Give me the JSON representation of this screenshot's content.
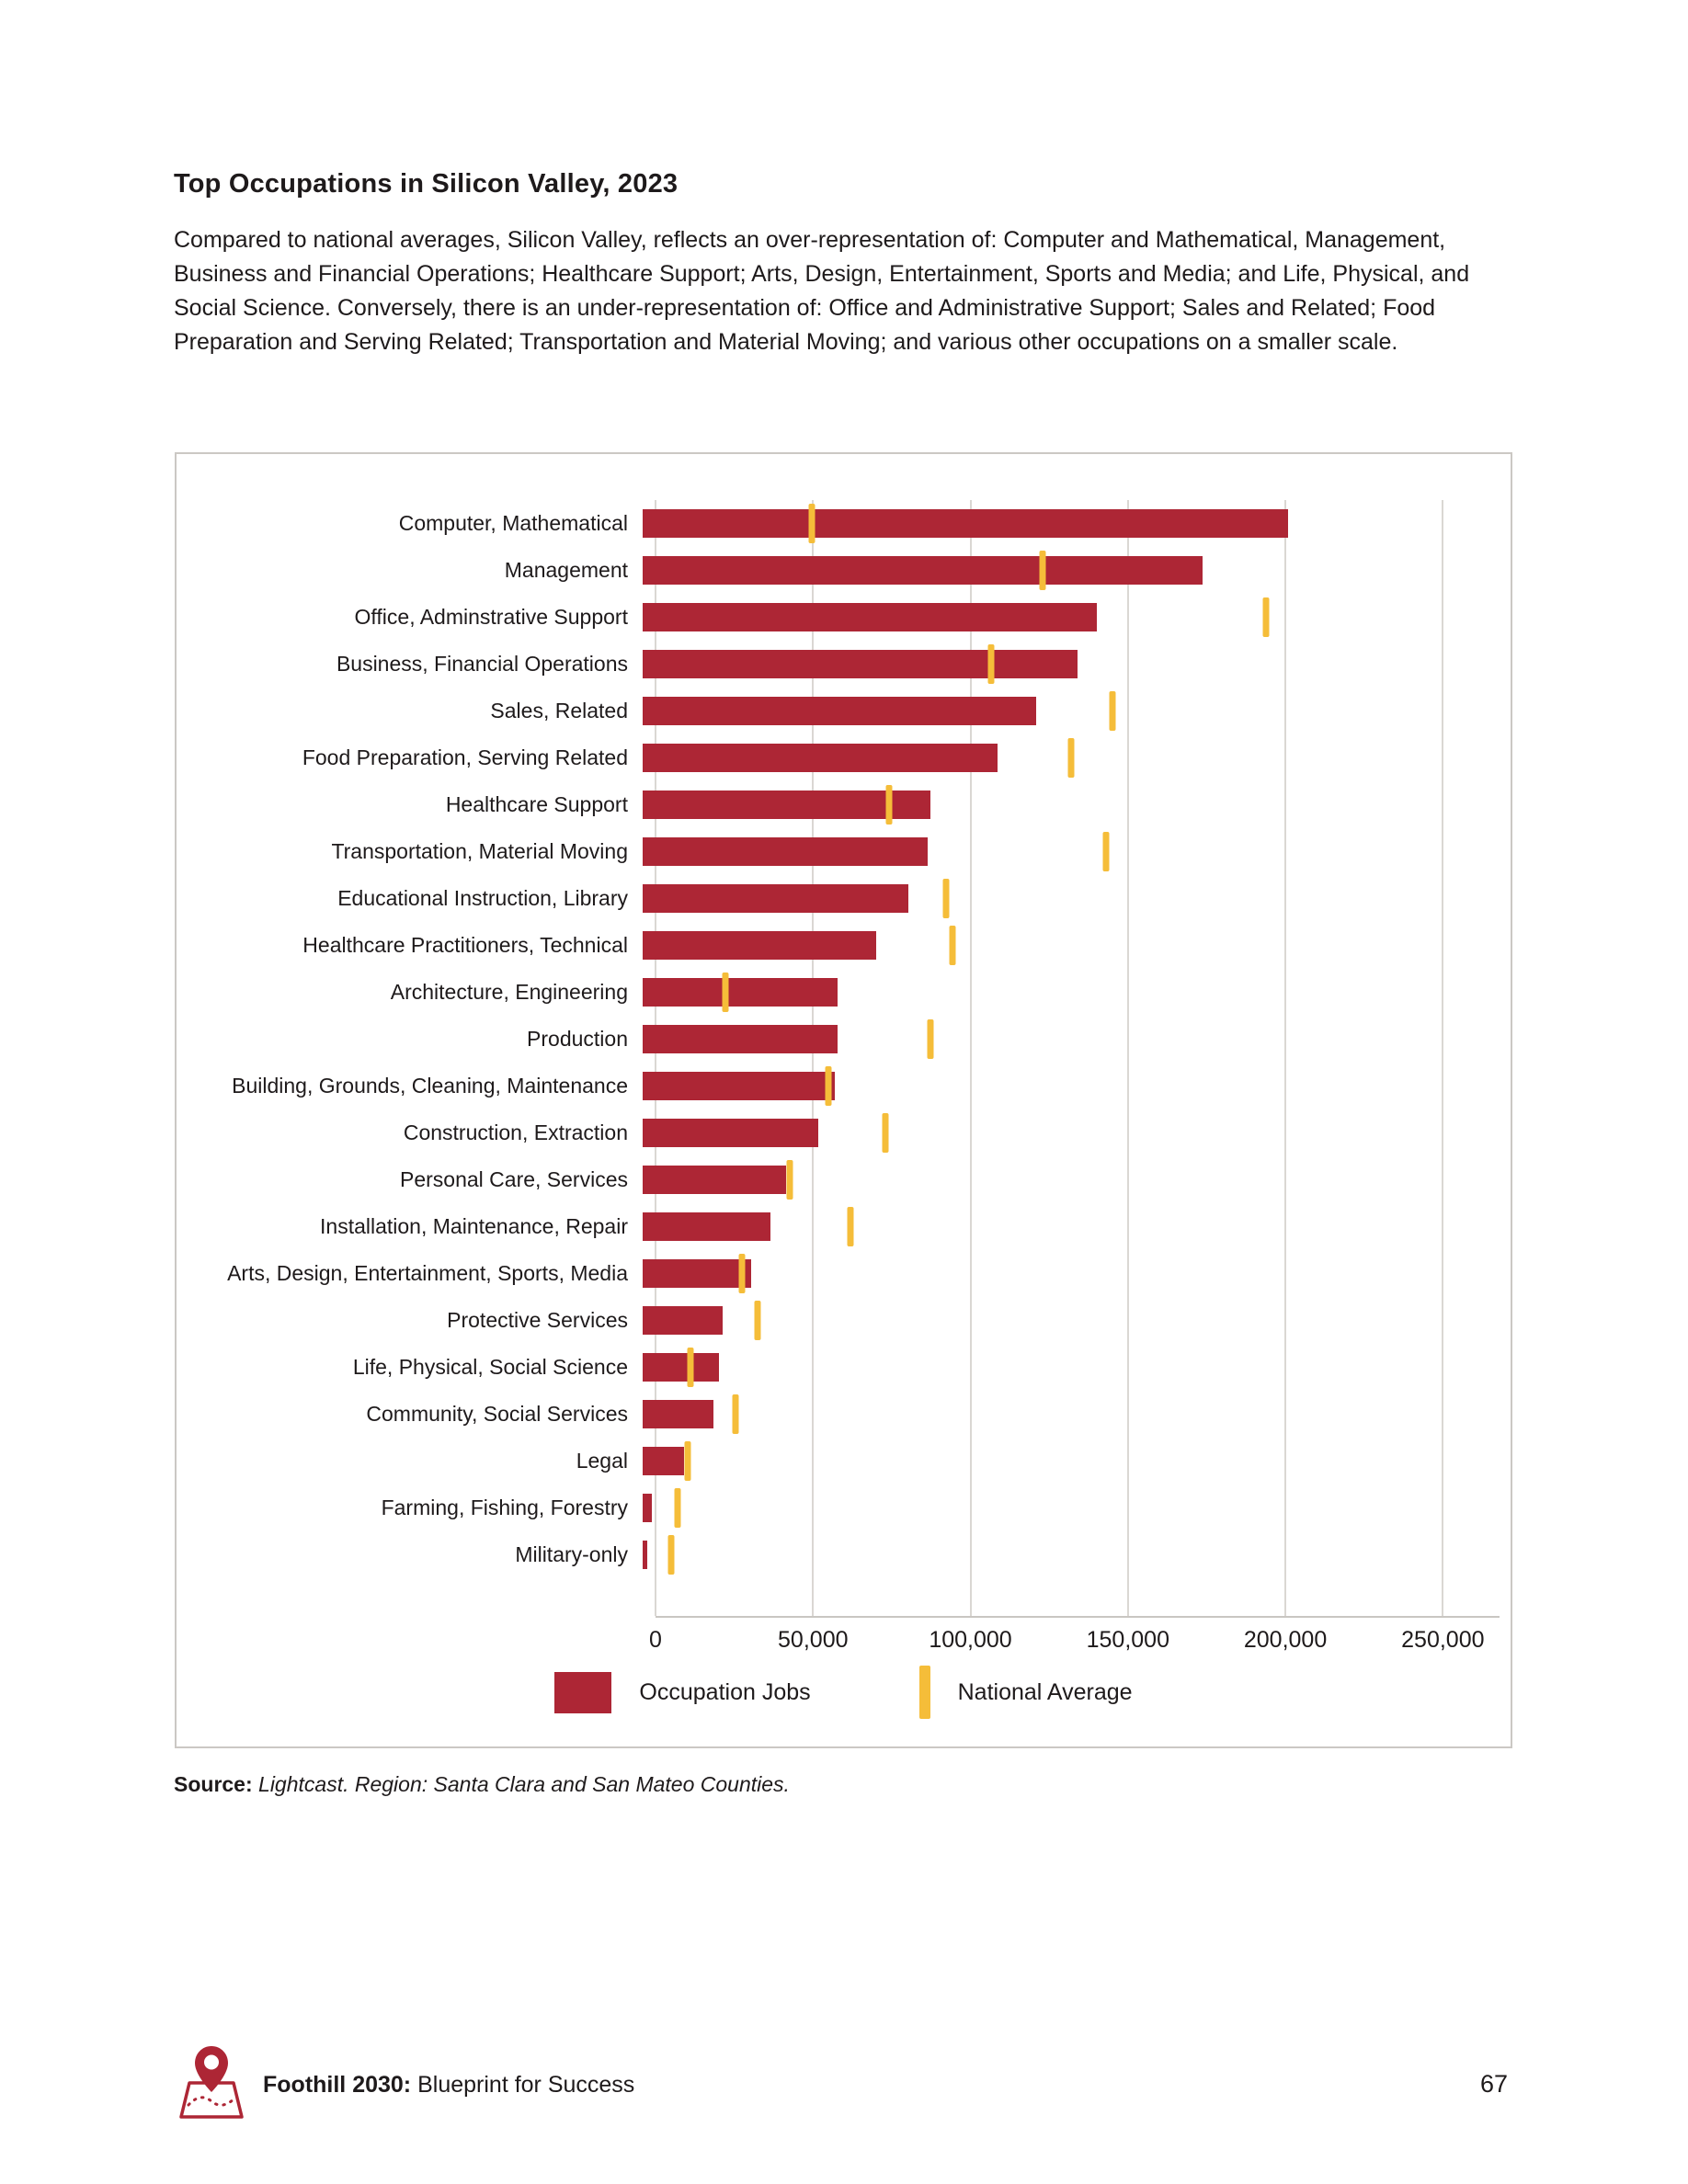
{
  "page": {
    "title": "Top Occupations in Silicon Valley, 2023",
    "paragraph": "Compared to national averages, Silicon Valley, reflects an over-representation of: Computer and Mathematical, Management, Business and Financial Operations; Healthcare Support; Arts, Design, Entertainment, Sports and Media; and Life, Physical, and Social Science. Conversely, there is an under-representation of: Office and Administrative Support; Sales and Related; Food Preparation and Serving Related; Transportation and Material Moving; and various other occupations on a smaller scale.",
    "source_label": "Source:",
    "source_text": "Lightcast. Region: Santa Clara and San Mateo Counties.",
    "footer": {
      "brand_bold": "Foothill 2030:",
      "brand_rest": "Blueprint for Success",
      "page_number": "67"
    }
  },
  "chart_data": {
    "type": "bar",
    "orientation": "horizontal",
    "title": "",
    "xlabel": "",
    "ylabel": "",
    "xlim": [
      0,
      268000
    ],
    "grid": true,
    "legend_position": "bottom",
    "x_ticks": [
      "0",
      "50,000",
      "100,000",
      "150,000",
      "200,000",
      "250,000"
    ],
    "x_tick_values": [
      0,
      50000,
      100000,
      150000,
      200000,
      250000
    ],
    "categories": [
      "Computer, Mathematical",
      "Management",
      "Office, Adminstrative Support",
      "Business, Financial Operations",
      "Sales, Related",
      "Food Preparation, Serving Related",
      "Healthcare Support",
      "Transportation, Material Moving",
      "Educational Instruction, Library",
      "Healthcare Practitioners, Technical",
      "Architecture, Engineering",
      "Production",
      "Building, Grounds, Cleaning, Maintenance",
      "Construction, Extraction",
      "Personal Care, Services",
      "Installation, Maintenance, Repair",
      "Arts, Design, Entertainment, Sports, Media",
      "Protective Services",
      "Life, Physical, Social Science",
      "Community, Social Services",
      "Legal",
      "Farming, Fishing, Forestry",
      "Military-only"
    ],
    "series": [
      {
        "name": "Occupation Jobs",
        "values": [
          202000,
          175000,
          142000,
          136000,
          123000,
          111000,
          90000,
          89000,
          83000,
          73000,
          61000,
          61000,
          60000,
          55000,
          45000,
          40000,
          34000,
          25000,
          24000,
          22000,
          13000,
          3000,
          1500
        ]
      },
      {
        "name": "National Average",
        "values": [
          53000,
          125000,
          195000,
          109000,
          147000,
          134000,
          77000,
          145000,
          95000,
          97000,
          26000,
          90000,
          58000,
          76000,
          46000,
          65000,
          31000,
          36000,
          15000,
          29000,
          14000,
          11000,
          9000
        ]
      }
    ],
    "colors": {
      "occupation_jobs": "#ad2635",
      "national_average": "#f5bd39",
      "gridline": "#dad7d3"
    }
  }
}
